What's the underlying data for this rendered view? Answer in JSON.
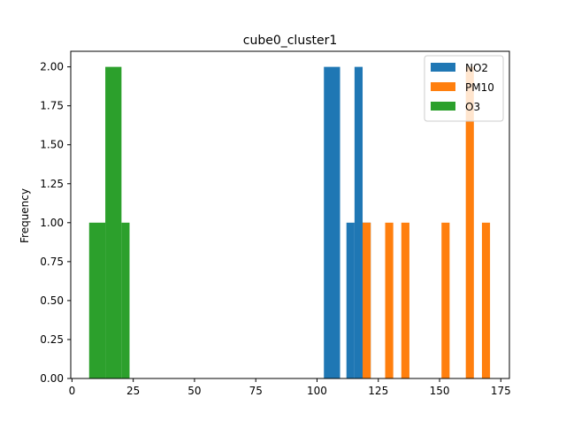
{
  "chart_data": {
    "type": "bar",
    "subtype": "histogram",
    "title": "cube0_cluster1",
    "xlabel": "",
    "ylabel": "Frequency",
    "xlim": [
      -0.5,
      178.5
    ],
    "ylim": [
      0,
      2.1
    ],
    "grid": false,
    "legend_position": "top-right",
    "x_ticks": [
      0,
      25,
      50,
      75,
      100,
      125,
      150,
      175
    ],
    "y_ticks": [
      0.0,
      0.25,
      0.5,
      0.75,
      1.0,
      1.25,
      1.5,
      1.75,
      2.0
    ],
    "y_tick_labels": [
      "0.00",
      "0.25",
      "0.50",
      "0.75",
      "1.00",
      "1.25",
      "1.50",
      "1.75",
      "2.00"
    ],
    "series": [
      {
        "name": "NO2",
        "color": "#1f77b4",
        "bins": [
          {
            "x0": 102.8,
            "x1": 109.4,
            "count": 2
          },
          {
            "x0": 112.0,
            "x1": 115.3,
            "count": 1
          },
          {
            "x0": 115.3,
            "x1": 118.6,
            "count": 2
          },
          {
            "x0": 118.6,
            "x1": 121.9,
            "count": 1
          }
        ]
      },
      {
        "name": "PM10",
        "color": "#ff7f0e",
        "bins": [
          {
            "x0": 118.6,
            "x1": 121.9,
            "count": 1
          },
          {
            "x0": 127.8,
            "x1": 131.1,
            "count": 1
          },
          {
            "x0": 134.4,
            "x1": 137.7,
            "count": 1
          },
          {
            "x0": 150.8,
            "x1": 154.1,
            "count": 1
          },
          {
            "x0": 160.7,
            "x1": 164.0,
            "count": 2
          },
          {
            "x0": 167.3,
            "x1": 170.6,
            "count": 1
          }
        ]
      },
      {
        "name": "O3",
        "color": "#2ca02c",
        "bins": [
          {
            "x0": 7.0,
            "x1": 13.6,
            "count": 1
          },
          {
            "x0": 13.6,
            "x1": 20.2,
            "count": 2
          },
          {
            "x0": 20.2,
            "x1": 23.5,
            "count": 1
          }
        ]
      }
    ]
  }
}
